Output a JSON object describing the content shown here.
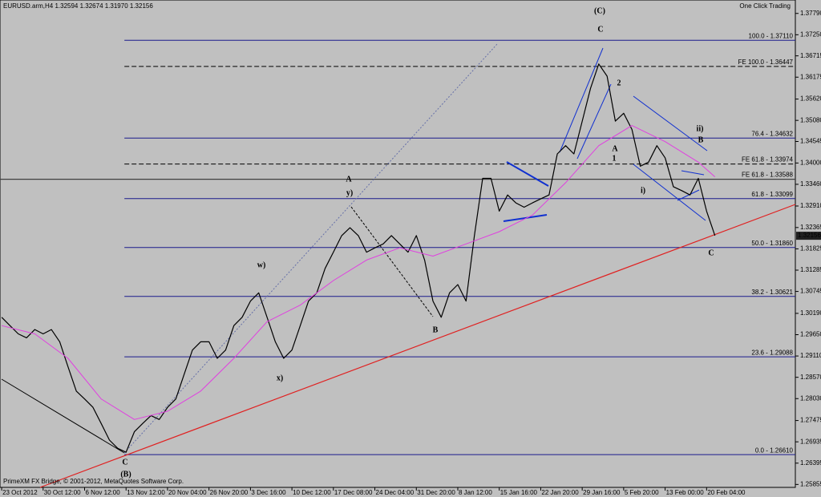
{
  "header": "EURUSD.arm,H4  1.32594 1.32674 1.31970 1.32156",
  "one_click": "One Click Trading",
  "footer": "PrimeXM FX Bridge, © 2001-2012, MetaQuotes Software Corp.",
  "chart_data": {
    "type": "line",
    "xlim": [
      -0.2,
      95.7
    ],
    "ylim": [
      1.2574,
      1.3813
    ],
    "xticks": [
      {
        "value": 0,
        "label": "23 Oct 2012"
      },
      {
        "value": 5,
        "label": "30 Oct 12:00"
      },
      {
        "value": 10,
        "label": "6 Nov 12:00"
      },
      {
        "value": 15,
        "label": "13 Nov 12:00"
      },
      {
        "value": 20,
        "label": "20 Nov 04:00"
      },
      {
        "value": 25,
        "label": "26 Nov 20:00"
      },
      {
        "value": 30,
        "label": "3 Dec 16:00"
      },
      {
        "value": 35,
        "label": "10 Dec 12:00"
      },
      {
        "value": 40,
        "label": "17 Dec 08:00"
      },
      {
        "value": 45,
        "label": "24 Dec 04:00"
      },
      {
        "value": 50,
        "label": "31 Dec 20:00"
      },
      {
        "value": 55,
        "label": "8 Jan 12:00"
      },
      {
        "value": 60,
        "label": "15 Jan 16:00"
      },
      {
        "value": 65,
        "label": "22 Jan 20:00"
      },
      {
        "value": 70,
        "label": "29 Jan 16:00"
      },
      {
        "value": 75,
        "label": "5 Feb 20:00"
      },
      {
        "value": 80,
        "label": "13 Feb 00:00"
      },
      {
        "value": 85,
        "label": "20 Feb 04:00"
      }
    ],
    "yticks": [
      {
        "value": 1.3779,
        "label": "1.37790"
      },
      {
        "value": 1.3725,
        "label": "1.37250"
      },
      {
        "value": 1.36715,
        "label": "1.36715"
      },
      {
        "value": 1.36175,
        "label": "1.36175"
      },
      {
        "value": 1.3562,
        "label": "1.35620"
      },
      {
        "value": 1.3508,
        "label": "1.35080"
      },
      {
        "value": 1.34545,
        "label": "1.34545"
      },
      {
        "value": 1.34,
        "label": "1.34000"
      },
      {
        "value": 1.3346,
        "label": "1.33460"
      },
      {
        "value": 1.3291,
        "label": "1.32910"
      },
      {
        "value": 1.32365,
        "label": "1.32365"
      },
      {
        "value": 1.31825,
        "label": "1.31825"
      },
      {
        "value": 1.31285,
        "label": "1.31285"
      },
      {
        "value": 1.30745,
        "label": "1.30745"
      },
      {
        "value": 1.3019,
        "label": "1.30190"
      },
      {
        "value": 1.2965,
        "label": "1.29650"
      },
      {
        "value": 1.2911,
        "label": "1.29110"
      },
      {
        "value": 1.2857,
        "label": "1.28570"
      },
      {
        "value": 1.2803,
        "label": "1.28030"
      },
      {
        "value": 1.27475,
        "label": "1.27475"
      },
      {
        "value": 1.26935,
        "label": "1.26935"
      },
      {
        "value": 1.26395,
        "label": "1.26395"
      },
      {
        "value": 1.25855,
        "label": "1.25855"
      }
    ],
    "series": [
      {
        "color": "#000000",
        "x": [
          0,
          1,
          2,
          3,
          4,
          5,
          6,
          7,
          8,
          9,
          10,
          11,
          12,
          13,
          14,
          15,
          16,
          17,
          18,
          19,
          20,
          21,
          22,
          23,
          24,
          25,
          26,
          27,
          28,
          29,
          30,
          31,
          32,
          33,
          34,
          35,
          36,
          37,
          38,
          39,
          40,
          41,
          42,
          43,
          44,
          45,
          46,
          47,
          48,
          49,
          50,
          51,
          52,
          53,
          54,
          55,
          56,
          57,
          58,
          59,
          60,
          61,
          62,
          63,
          64,
          65,
          66,
          67,
          68,
          69,
          70,
          71,
          72,
          73,
          74,
          75,
          76,
          77,
          78,
          79,
          80,
          81,
          82,
          83,
          84,
          85,
          86
        ],
        "values": [
          1.3009,
          1.2988,
          1.2967,
          1.2957,
          1.2978,
          1.2967,
          1.2978,
          1.2947,
          1.2884,
          1.2822,
          1.2802,
          1.2781,
          1.274,
          1.2698,
          1.2677,
          1.2667,
          1.2719,
          1.274,
          1.276,
          1.275,
          1.2781,
          1.2802,
          1.2864,
          1.2926,
          1.2947,
          1.2947,
          1.2905,
          1.2926,
          1.2988,
          1.3009,
          1.305,
          1.3071,
          1.3009,
          1.2947,
          1.2905,
          1.2926,
          1.2988,
          1.305,
          1.3071,
          1.3133,
          1.3174,
          1.3216,
          1.3236,
          1.3216,
          1.3174,
          1.3185,
          1.3195,
          1.3216,
          1.3195,
          1.3174,
          1.3216,
          1.3154,
          1.305,
          1.3009,
          1.3071,
          1.3092,
          1.305,
          1.3216,
          1.3361,
          1.3361,
          1.3278,
          1.3319,
          1.3299,
          1.3288,
          1.3299,
          1.3309,
          1.3319,
          1.3423,
          1.3444,
          1.3423,
          1.3506,
          1.3589,
          1.3651,
          1.362,
          1.3506,
          1.3526,
          1.3485,
          1.3392,
          1.3402,
          1.3444,
          1.3413,
          1.334,
          1.333,
          1.3319,
          1.3361,
          1.3278,
          1.3216
        ]
      },
      {
        "color": "#e040e0",
        "x": [
          0,
          4,
          8,
          12,
          16,
          20,
          24,
          28,
          32,
          36,
          40,
          44,
          48,
          52,
          56,
          60,
          64,
          68,
          72,
          76,
          80,
          84,
          86
        ],
        "values": [
          1.2988,
          1.2967,
          1.2905,
          1.2802,
          1.275,
          1.2771,
          1.2822,
          1.2905,
          1.2998,
          1.304,
          1.3102,
          1.3154,
          1.3185,
          1.3164,
          1.3195,
          1.3226,
          1.3268,
          1.335,
          1.3444,
          1.3495,
          1.3454,
          1.3402,
          1.3365
        ]
      }
    ],
    "current_price": {
      "value": 1.32156,
      "label": "1.32156"
    },
    "fib_start": 14.8,
    "fib_levels": [
      {
        "label": "100.0 - 1.37110",
        "value": 1.3711,
        "color": "#1a1a8c",
        "style": "solid"
      },
      {
        "label": "FE 100.0 - 1.36447",
        "value": 1.36447,
        "color": "#000000",
        "style": "dashed"
      },
      {
        "label": "76.4 - 1.34632",
        "value": 1.34632,
        "color": "#1a1a8c",
        "style": "solid"
      },
      {
        "label": "FE 61.8 - 1.33974",
        "value": 1.33974,
        "color": "#000000",
        "style": "dashed"
      },
      {
        "label": "FE 61.8 - 1.33588",
        "value": 1.33588,
        "color": "#404040",
        "style": "full"
      },
      {
        "label": "61.8 - 1.33099",
        "value": 1.33099,
        "color": "#1a1a8c",
        "style": "solid"
      },
      {
        "label": "50.0 - 1.31860",
        "value": 1.3186,
        "color": "#1a1a8c",
        "style": "solid"
      },
      {
        "label": "38.2 - 1.30621",
        "value": 1.30621,
        "color": "#1a1a8c",
        "style": "solid"
      },
      {
        "label": "23.6 - 1.29088",
        "value": 1.29088,
        "color": "#1a1a8c",
        "style": "solid"
      },
      {
        "label": "0.0 - 1.26610",
        "value": 1.2661,
        "color": "#1a1a8c",
        "style": "solid"
      }
    ],
    "wave_labels": [
      {
        "text": "(C)",
        "color": "#8b0000"
      },
      {
        "text": "C",
        "color": "#8b0000"
      },
      {
        "text": "A",
        "color": "#8b0000"
      },
      {
        "text": "y)",
        "color": "#8b0000"
      },
      {
        "text": "w)",
        "color": "#8b0000"
      },
      {
        "text": "x)",
        "color": "#8b0000"
      },
      {
        "text": "B",
        "color": "#8b0000"
      },
      {
        "text": "C",
        "color": "#8b0000"
      },
      {
        "text": "(B)",
        "color": "#8b0000"
      },
      {
        "text": "A",
        "color": "#8b0000"
      },
      {
        "text": "2",
        "color": "#0000cd"
      },
      {
        "text": "1",
        "color": "#0000cd"
      },
      {
        "text": "i)",
        "color": "#0000cd"
      },
      {
        "text": "ii)",
        "color": "#0000cd"
      },
      {
        "text": "B",
        "color": "#8b0000"
      },
      {
        "text": "C",
        "color": "#8b0000"
      }
    ]
  }
}
